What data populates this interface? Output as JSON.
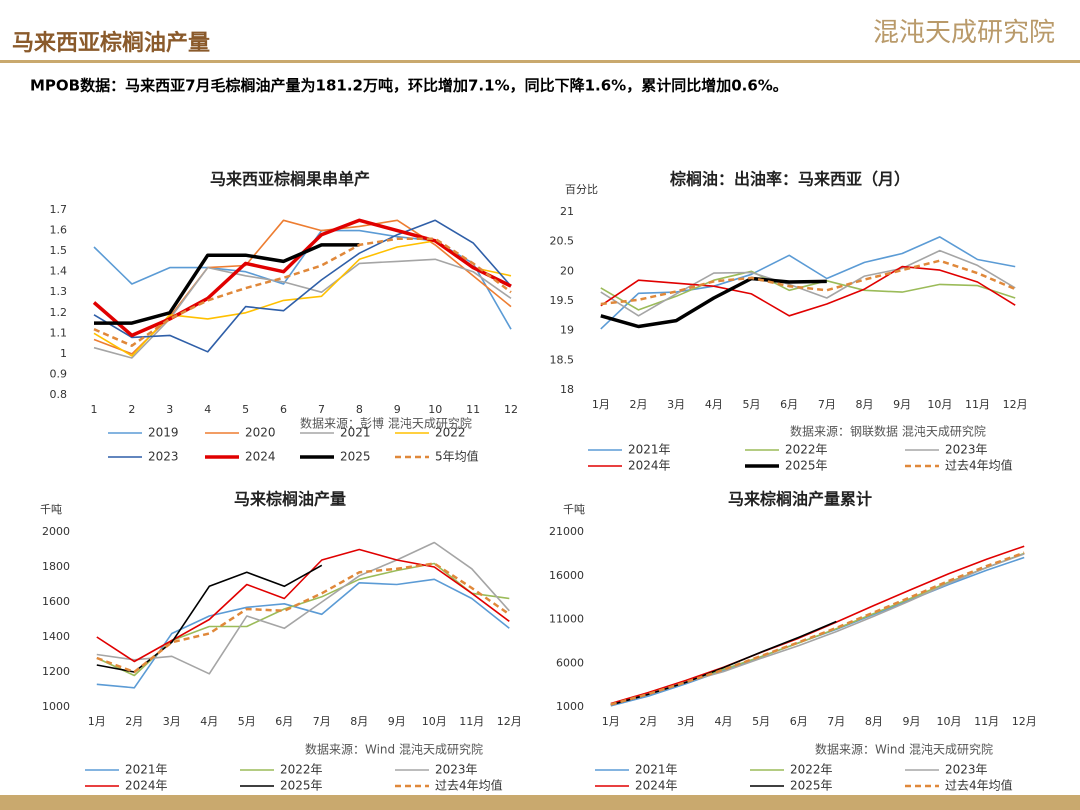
{
  "header": {
    "title": "马来西亚棕榈油产量",
    "logo": "混沌天成研究院"
  },
  "summary": "MPOB数据：马来西亚7月毛棕榈油产量为181.2万吨，环比增加7.1%，同比下降1.6%，累计同比增加0.6%。",
  "chart_data": [
    {
      "type": "line",
      "title": "马来西亚棕榈果串单产",
      "source": "数据来源：彭博  混沌天成研究院",
      "categories": [
        "1",
        "2",
        "3",
        "4",
        "5",
        "6",
        "7",
        "8",
        "9",
        "10",
        "11",
        "12"
      ],
      "ylim": [
        0.8,
        1.7
      ],
      "yticks": [
        0.8,
        0.9,
        1,
        1.1,
        1.2,
        1.3,
        1.4,
        1.5,
        1.6,
        1.7
      ],
      "series": [
        {
          "name": "2019",
          "color": "#5b9bd5",
          "line_style": "solid",
          "values": [
            1.52,
            1.34,
            1.42,
            1.42,
            1.4,
            1.34,
            1.6,
            1.6,
            1.57,
            1.55,
            1.44,
            1.12
          ]
        },
        {
          "name": "2020",
          "color": "#ed7d31",
          "line_style": "solid",
          "values": [
            1.07,
            1.0,
            1.18,
            1.42,
            1.43,
            1.65,
            1.6,
            1.62,
            1.65,
            1.53,
            1.38,
            1.23
          ]
        },
        {
          "name": "2021",
          "color": "#a5a5a5",
          "line_style": "solid",
          "values": [
            1.03,
            0.98,
            1.17,
            1.42,
            1.38,
            1.35,
            1.3,
            1.44,
            1.45,
            1.46,
            1.4,
            1.27
          ]
        },
        {
          "name": "2022",
          "color": "#ffc000",
          "line_style": "solid",
          "values": [
            1.1,
            0.99,
            1.19,
            1.17,
            1.2,
            1.26,
            1.28,
            1.46,
            1.52,
            1.55,
            1.42,
            1.38
          ]
        },
        {
          "name": "2023",
          "color": "#2f5fa8",
          "line_style": "solid",
          "values": [
            1.19,
            1.08,
            1.09,
            1.01,
            1.23,
            1.21,
            1.36,
            1.49,
            1.58,
            1.65,
            1.54,
            1.33
          ]
        },
        {
          "name": "2024",
          "color": "#e00000",
          "line_style": "bold",
          "values": [
            1.25,
            1.09,
            1.17,
            1.27,
            1.44,
            1.4,
            1.58,
            1.65,
            1.6,
            1.55,
            1.42,
            1.33
          ]
        },
        {
          "name": "2025",
          "color": "#000000",
          "line_style": "bold",
          "values": [
            1.15,
            1.15,
            1.2,
            1.48,
            1.48,
            1.45,
            1.53,
            1.53,
            null,
            null,
            null,
            null
          ]
        },
        {
          "name": "5年均值",
          "color": "#e0883a",
          "line_style": "dashed",
          "values": [
            1.12,
            1.04,
            1.17,
            1.26,
            1.32,
            1.37,
            1.43,
            1.53,
            1.56,
            1.56,
            1.44,
            1.3
          ]
        }
      ]
    },
    {
      "type": "line",
      "title": "棕榈油：出油率：马来西亚（月）",
      "ylabel": "百分比",
      "source": "数据来源：钢联数据  混沌天成研究院",
      "categories": [
        "1月",
        "2月",
        "3月",
        "4月",
        "5月",
        "6月",
        "7月",
        "8月",
        "9月",
        "10月",
        "11月",
        "12月"
      ],
      "ylim": [
        18,
        21
      ],
      "yticks": [
        18,
        18.5,
        19,
        19.5,
        20,
        20.5,
        21
      ],
      "series": [
        {
          "name": "2021年",
          "color": "#5b9bd5",
          "line_style": "solid",
          "values": [
            19.03,
            19.63,
            19.65,
            19.75,
            19.95,
            20.27,
            19.88,
            20.15,
            20.3,
            20.58,
            20.2,
            20.08
          ]
        },
        {
          "name": "2022年",
          "color": "#9bbb59",
          "line_style": "solid",
          "values": [
            19.72,
            19.35,
            19.58,
            19.85,
            20.0,
            19.68,
            19.84,
            19.68,
            19.65,
            19.78,
            19.76,
            19.55
          ]
        },
        {
          "name": "2023年",
          "color": "#a5a5a5",
          "line_style": "solid",
          "values": [
            19.65,
            19.25,
            19.62,
            19.97,
            19.98,
            19.78,
            19.55,
            19.92,
            20.05,
            20.35,
            20.1,
            19.72
          ]
        },
        {
          "name": "2024年",
          "color": "#e00000",
          "line_style": "solid",
          "values": [
            19.42,
            19.85,
            19.8,
            19.75,
            19.62,
            19.25,
            19.45,
            19.7,
            20.08,
            20.02,
            19.82,
            19.43
          ]
        },
        {
          "name": "2025年",
          "color": "#000000",
          "line_style": "bold",
          "values": [
            19.25,
            19.07,
            19.17,
            19.55,
            19.88,
            19.82,
            19.83,
            null,
            null,
            null,
            null,
            null
          ]
        },
        {
          "name": "过去4年均值",
          "color": "#e0883a",
          "line_style": "dashed",
          "values": [
            19.45,
            19.52,
            19.66,
            19.83,
            19.89,
            19.75,
            19.68,
            19.86,
            20.02,
            20.18,
            19.97,
            19.7
          ]
        }
      ]
    },
    {
      "type": "line",
      "title": "马来棕榈油产量",
      "ylabel": "千吨",
      "source": "数据来源：Wind  混沌天成研究院",
      "categories": [
        "1月",
        "2月",
        "3月",
        "4月",
        "5月",
        "6月",
        "7月",
        "8月",
        "9月",
        "10月",
        "11月",
        "12月"
      ],
      "ylim": [
        1000,
        2000
      ],
      "yticks": [
        1000,
        1200,
        1400,
        1600,
        1800,
        2000
      ],
      "series": [
        {
          "name": "2021年",
          "color": "#5b9bd5",
          "line_style": "solid",
          "values": [
            1130,
            1110,
            1420,
            1520,
            1570,
            1590,
            1530,
            1710,
            1700,
            1730,
            1620,
            1450
          ]
        },
        {
          "name": "2022年",
          "color": "#9bbb59",
          "line_style": "solid",
          "values": [
            1280,
            1180,
            1380,
            1460,
            1460,
            1560,
            1630,
            1730,
            1780,
            1820,
            1650,
            1620
          ]
        },
        {
          "name": "2023年",
          "color": "#a5a5a5",
          "line_style": "solid",
          "values": [
            1300,
            1270,
            1290,
            1190,
            1520,
            1450,
            1600,
            1750,
            1840,
            1940,
            1790,
            1550
          ]
        },
        {
          "name": "2024年",
          "color": "#e00000",
          "line_style": "solid",
          "values": [
            1400,
            1260,
            1380,
            1500,
            1700,
            1620,
            1840,
            1900,
            1840,
            1800,
            1650,
            1490
          ]
        },
        {
          "name": "2025年",
          "color": "#000000",
          "line_style": "solid",
          "values": [
            1240,
            1200,
            1370,
            1690,
            1770,
            1690,
            1810,
            null,
            null,
            null,
            null,
            null
          ]
        },
        {
          "name": "过去4年均值",
          "color": "#e0883a",
          "line_style": "dashed",
          "values": [
            1280,
            1200,
            1370,
            1420,
            1560,
            1550,
            1650,
            1770,
            1790,
            1820,
            1680,
            1530
          ]
        }
      ]
    },
    {
      "type": "line",
      "title": "马来棕榈油产量累计",
      "ylabel": "千吨",
      "source": "数据来源：Wind  混沌天成研究院",
      "categories": [
        "1月",
        "2月",
        "3月",
        "4月",
        "5月",
        "6月",
        "7月",
        "8月",
        "9月",
        "10月",
        "11月",
        "12月"
      ],
      "ylim": [
        1000,
        21000
      ],
      "yticks": [
        1000,
        6000,
        11000,
        16000,
        21000
      ],
      "series": [
        {
          "name": "2021年",
          "color": "#5b9bd5",
          "line_style": "solid",
          "values": [
            1130,
            2240,
            3660,
            5180,
            6750,
            8340,
            9870,
            11580,
            13280,
            15010,
            16630,
            18080
          ]
        },
        {
          "name": "2022年",
          "color": "#9bbb59",
          "line_style": "solid",
          "values": [
            1280,
            2460,
            3840,
            5300,
            6760,
            8320,
            9950,
            11680,
            13460,
            15280,
            16930,
            18550
          ]
        },
        {
          "name": "2023年",
          "color": "#a5a5a5",
          "line_style": "solid",
          "values": [
            1300,
            2570,
            3860,
            5050,
            6570,
            8020,
            9620,
            11370,
            13210,
            15150,
            16940,
            18490
          ]
        },
        {
          "name": "2024年",
          "color": "#e00000",
          "line_style": "solid",
          "values": [
            1400,
            2660,
            4040,
            5540,
            7240,
            8860,
            10700,
            12600,
            14440,
            16240,
            17890,
            19380
          ]
        },
        {
          "name": "2025年",
          "color": "#000000",
          "line_style": "solid",
          "values": [
            1240,
            2440,
            3810,
            5500,
            7270,
            8960,
            10770,
            null,
            null,
            null,
            null,
            null
          ]
        },
        {
          "name": "过去4年均值",
          "color": "#e0883a",
          "line_style": "dashed",
          "values": [
            1280,
            2480,
            3850,
            5270,
            6830,
            8390,
            10040,
            11810,
            13600,
            15420,
            17100,
            18630
          ]
        }
      ]
    }
  ]
}
